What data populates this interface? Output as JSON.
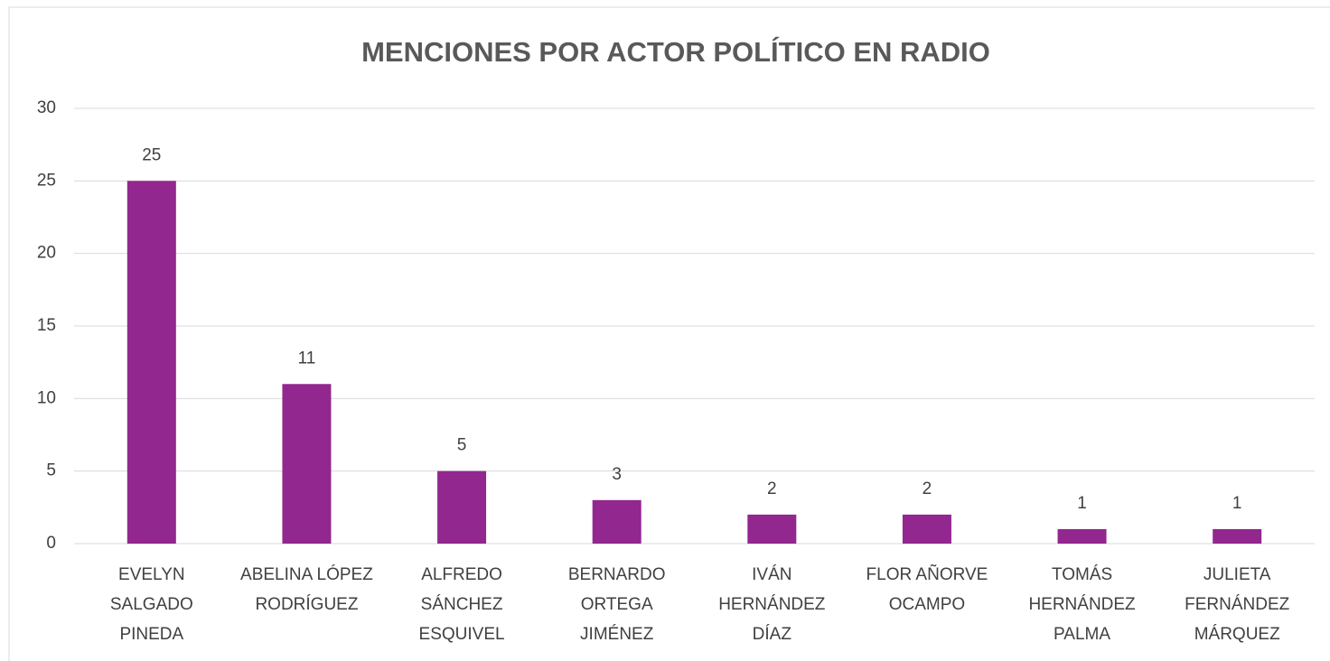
{
  "chart_data": {
    "type": "bar",
    "title": "MENCIONES POR ACTOR POLÍTICO EN RADIO",
    "categories": [
      "EVELYN\nSALGADO\nPINEDA",
      "ABELINA LÓPEZ\nRODRÍGUEZ",
      "ALFREDO\nSÁNCHEZ\nESQUIVEL",
      "BERNARDO\nORTEGA\nJIMÉNEZ",
      "IVÁN\nHERNÁNDEZ\nDÍAZ",
      "FLOR AÑORVE\nOCAMPO",
      "TOMÁS\nHERNÁNDEZ\nPALMA",
      "JULIETA\nFERNÁNDEZ\nMÁRQUEZ"
    ],
    "values": [
      25,
      11,
      5,
      3,
      2,
      2,
      1,
      1
    ],
    "color": "#92278f",
    "ylim": [
      0,
      30
    ],
    "yticks": [
      0,
      5,
      10,
      15,
      20,
      25,
      30
    ],
    "grid": true
  }
}
